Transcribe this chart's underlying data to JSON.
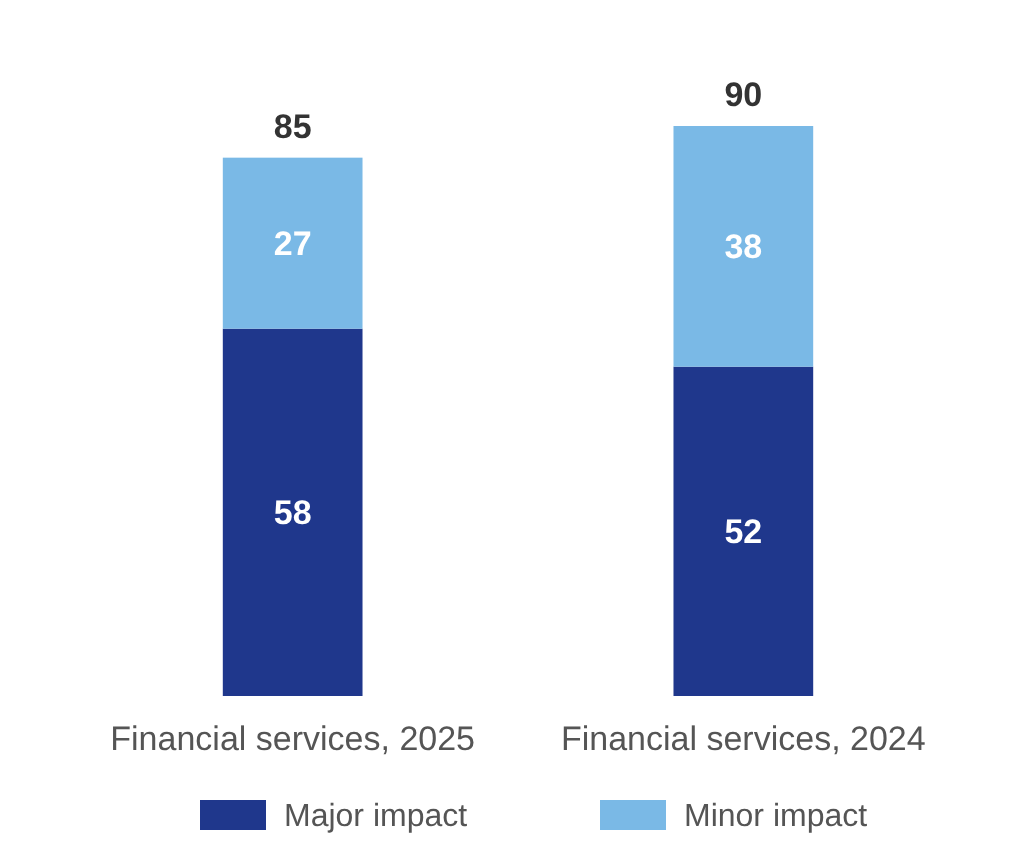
{
  "chart_data": {
    "type": "bar",
    "stacked": true,
    "data_labels": true,
    "legend": "bottom",
    "categories": [
      "Financial services, 2025",
      "Financial services, 2024"
    ],
    "series": [
      {
        "name": "Major impact",
        "color": "#1f378c",
        "values": [
          58,
          52
        ]
      },
      {
        "name": "Minor impact",
        "color": "#7ab9e6",
        "values": [
          27,
          38
        ]
      }
    ],
    "totals": [
      "85",
      "90"
    ]
  }
}
